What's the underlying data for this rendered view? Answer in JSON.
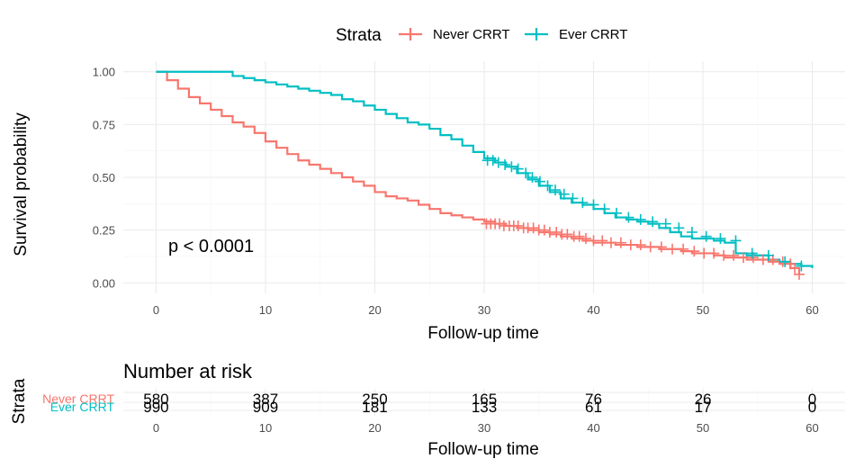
{
  "chart_data": {
    "type": "line",
    "subtype": "kaplan-meier",
    "xlabel": "Follow-up time",
    "ylabel": "Survival probability",
    "xlim": [
      -3,
      63
    ],
    "ylim": [
      -0.05,
      1.05
    ],
    "x_ticks": [
      0,
      10,
      20,
      30,
      40,
      50,
      60
    ],
    "y_ticks": [
      0.0,
      0.25,
      0.5,
      0.75,
      1.0
    ],
    "y_tick_labels": [
      "0.00",
      "0.25",
      "0.50",
      "0.75",
      "1.00"
    ],
    "grid": true,
    "legend": {
      "title": "Strata",
      "placement": "top",
      "entries": [
        "Never CRRT",
        "Ever CRRT"
      ]
    },
    "annotation": "p < 0.0001",
    "series": [
      {
        "name": "Never CRRT",
        "color": "#F8766D",
        "x": [
          0,
          1,
          2,
          3,
          4,
          5,
          6,
          7,
          8,
          9,
          10,
          11,
          12,
          13,
          14,
          15,
          16,
          17,
          18,
          19,
          20,
          21,
          22,
          23,
          24,
          25,
          26,
          27,
          28,
          29,
          30,
          31,
          32,
          33,
          34,
          35,
          36,
          37,
          38,
          39,
          40,
          41,
          42,
          43,
          44,
          45,
          46,
          47,
          48,
          49,
          50,
          51,
          52,
          53,
          54,
          55,
          56,
          57,
          58,
          58.8
        ],
        "y": [
          1.0,
          0.96,
          0.92,
          0.88,
          0.85,
          0.82,
          0.79,
          0.76,
          0.74,
          0.71,
          0.67,
          0.64,
          0.61,
          0.58,
          0.56,
          0.54,
          0.52,
          0.5,
          0.48,
          0.46,
          0.43,
          0.41,
          0.4,
          0.39,
          0.37,
          0.35,
          0.33,
          0.32,
          0.31,
          0.3,
          0.29,
          0.28,
          0.27,
          0.26,
          0.25,
          0.24,
          0.23,
          0.22,
          0.21,
          0.2,
          0.19,
          0.19,
          0.18,
          0.18,
          0.17,
          0.17,
          0.16,
          0.16,
          0.15,
          0.14,
          0.14,
          0.13,
          0.12,
          0.12,
          0.11,
          0.11,
          0.1,
          0.09,
          0.07,
          0.04
        ],
        "censor_x": [
          30.2,
          30.6,
          31.0,
          31.4,
          31.8,
          32.3,
          32.7,
          33.1,
          33.6,
          34.0,
          34.5,
          35.0,
          35.5,
          36.0,
          36.6,
          37.1,
          37.6,
          38.2,
          38.7,
          39.3,
          40.0,
          40.8,
          41.6,
          42.5,
          43.4,
          44.3,
          45.2,
          46.2,
          47.2,
          48.2,
          49.2,
          50.1,
          51.0,
          51.9,
          52.8,
          53.7,
          54.6,
          55.5,
          56.4,
          57.3,
          58.0,
          58.4,
          58.8
        ],
        "censor_y": [
          0.28,
          0.28,
          0.28,
          0.28,
          0.27,
          0.27,
          0.27,
          0.27,
          0.26,
          0.26,
          0.26,
          0.25,
          0.25,
          0.24,
          0.24,
          0.23,
          0.23,
          0.22,
          0.22,
          0.21,
          0.2,
          0.2,
          0.19,
          0.19,
          0.18,
          0.18,
          0.17,
          0.17,
          0.16,
          0.16,
          0.15,
          0.14,
          0.14,
          0.13,
          0.13,
          0.12,
          0.12,
          0.11,
          0.11,
          0.1,
          0.09,
          0.07,
          0.04
        ]
      },
      {
        "name": "Ever CRRT",
        "color": "#00BFC4",
        "x": [
          0,
          6,
          7,
          8,
          9,
          10,
          11,
          12,
          13,
          14,
          15,
          16,
          17,
          18,
          19,
          20,
          21,
          22,
          23,
          24,
          25,
          26,
          27,
          28,
          29,
          30,
          31,
          32,
          33,
          34,
          35,
          36,
          37,
          38,
          39,
          40,
          41,
          42,
          43,
          44,
          45,
          46,
          47,
          48,
          49,
          50,
          51,
          52,
          53,
          54,
          55,
          56,
          57,
          58,
          59,
          60
        ],
        "y": [
          1.0,
          1.0,
          0.98,
          0.97,
          0.96,
          0.95,
          0.94,
          0.93,
          0.92,
          0.91,
          0.9,
          0.89,
          0.87,
          0.86,
          0.84,
          0.82,
          0.8,
          0.78,
          0.76,
          0.75,
          0.73,
          0.7,
          0.68,
          0.65,
          0.62,
          0.59,
          0.57,
          0.55,
          0.52,
          0.49,
          0.46,
          0.43,
          0.4,
          0.38,
          0.37,
          0.35,
          0.33,
          0.31,
          0.3,
          0.29,
          0.28,
          0.26,
          0.24,
          0.22,
          0.21,
          0.21,
          0.2,
          0.19,
          0.14,
          0.13,
          0.13,
          0.11,
          0.1,
          0.09,
          0.08,
          0.07
        ],
        "censor_x": [
          30.3,
          30.8,
          31.3,
          31.9,
          32.5,
          33.1,
          33.8,
          34.4,
          35.1,
          35.8,
          36.5,
          37.3,
          38.1,
          39.0,
          40.0,
          41.0,
          42.1,
          43.2,
          44.3,
          45.4,
          46.6,
          47.8,
          49.0,
          50.3,
          51.6,
          53.0,
          54.5,
          56.0,
          57.5,
          59.0
        ],
        "censor_y": [
          0.58,
          0.58,
          0.57,
          0.56,
          0.55,
          0.54,
          0.52,
          0.5,
          0.48,
          0.46,
          0.44,
          0.42,
          0.4,
          0.38,
          0.37,
          0.35,
          0.33,
          0.31,
          0.3,
          0.29,
          0.28,
          0.26,
          0.24,
          0.22,
          0.21,
          0.2,
          0.14,
          0.13,
          0.1,
          0.08
        ]
      }
    ]
  },
  "risk_table": {
    "title": "Number at risk",
    "ylabel": "Strata",
    "xlabel": "Follow-up time",
    "times": [
      0,
      10,
      20,
      30,
      40,
      50,
      60
    ],
    "time_labels": [
      "0",
      "10",
      "20",
      "30",
      "40",
      "50",
      "60"
    ],
    "rows": [
      {
        "name": "Never CRRT",
        "color": "#F8766D",
        "counts": [
          "580",
          "387",
          "250",
          "165",
          "76",
          "26",
          "0"
        ]
      },
      {
        "name": "Ever CRRT",
        "color": "#00BFC4",
        "counts": [
          "990",
          "909",
          "181",
          "133",
          "61",
          "17",
          "0"
        ]
      }
    ]
  }
}
